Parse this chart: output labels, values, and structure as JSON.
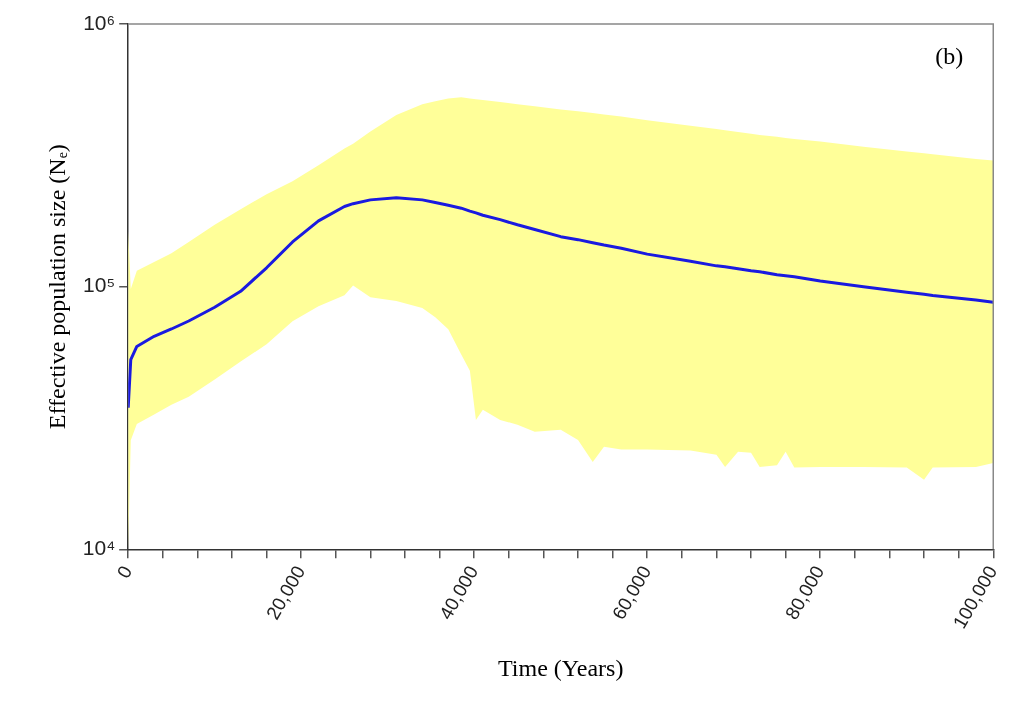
{
  "chart_data": {
    "type": "line",
    "xlabel": "Time (Years)",
    "ylabel": "Effective population size (Nₑ)",
    "annotations": [
      "(b)"
    ],
    "log": "y",
    "grid": false,
    "legend": false,
    "marker": "none",
    "line_style": "solid",
    "xlim": [
      0,
      100000
    ],
    "ylim": [
      10000,
      1000000
    ],
    "xticks": [
      0,
      {
        "value": 4000,
        "label": null
      },
      {
        "value": 8000,
        "label": null
      },
      {
        "value": 12000,
        "label": null
      },
      {
        "value": 16000,
        "label": null
      },
      {
        "value": 20000,
        "label": "20,000"
      },
      {
        "value": 24000,
        "label": null
      },
      {
        "value": 28000,
        "label": null
      },
      {
        "value": 32000,
        "label": null
      },
      {
        "value": 36000,
        "label": null
      },
      {
        "value": 40000,
        "label": "40,000"
      },
      {
        "value": 44000,
        "label": null
      },
      {
        "value": 48000,
        "label": null
      },
      {
        "value": 52000,
        "label": null
      },
      {
        "value": 56000,
        "label": null
      },
      {
        "value": 60000,
        "label": "60,000"
      },
      {
        "value": 64000,
        "label": null
      },
      {
        "value": 68000,
        "label": null
      },
      {
        "value": 72000,
        "label": null
      },
      {
        "value": 76000,
        "label": null
      },
      {
        "value": 80000,
        "label": "80,000"
      },
      {
        "value": 84000,
        "label": null
      },
      {
        "value": 88000,
        "label": null
      },
      {
        "value": 92000,
        "label": null
      },
      {
        "value": 96000,
        "label": null
      },
      {
        "value": 100000,
        "label": "100,000"
      }
    ],
    "yticks": [
      {
        "value": 10000,
        "label": "10⁴"
      },
      {
        "value": 100000,
        "label": "10⁵"
      },
      {
        "value": 1000000,
        "label": "10⁶"
      }
    ],
    "x": [
      0,
      300,
      1000,
      3000,
      5000,
      7000,
      10000,
      13000,
      16000,
      19000,
      22000,
      25000,
      26000,
      28000,
      31000,
      34000,
      35500,
      37000,
      38500,
      39500,
      40200,
      41000,
      43000,
      45000,
      47000,
      50000,
      52000,
      53700,
      55000,
      57000,
      60000,
      65000,
      68000,
      69000,
      70500,
      72000,
      73000,
      75000,
      76000,
      77000,
      80000,
      85000,
      90000,
      92000,
      93000,
      98000,
      100000
    ],
    "series": [
      {
        "color": "#1a1ae0",
        "values": [
          34600,
          52800,
          59200,
          64700,
          69000,
          74000,
          83500,
          96000,
          118000,
          148000,
          178000,
          202000,
          207000,
          214000,
          218000,
          214000,
          209000,
          204000,
          199000,
          194000,
          191000,
          187000,
          180000,
          172000,
          165000,
          155000,
          151000,
          147000,
          144000,
          140000,
          133000,
          125000,
          120000,
          119000,
          117000,
          115000,
          114000,
          111000,
          110000,
          109000,
          105000,
          100000,
          95300,
          93500,
          92500,
          89000,
          87300
        ],
        "lower": [
          10000,
          26000,
          30000,
          32600,
          35500,
          38100,
          44300,
          51900,
          60300,
          73800,
          84200,
          92700,
          101000,
          91200,
          88100,
          83000,
          76400,
          68800,
          55200,
          47800,
          31100,
          34000,
          31100,
          29800,
          28000,
          28500,
          26100,
          21500,
          24600,
          24000,
          24000,
          23800,
          22900,
          20600,
          23500,
          23300,
          20600,
          20900,
          23500,
          20500,
          20600,
          20600,
          20500,
          18400,
          20500,
          20600,
          21300
        ],
        "upper": [
          163000,
          98000,
          115000,
          124000,
          134000,
          148000,
          172000,
          197000,
          225000,
          252000,
          290000,
          336000,
          350000,
          390000,
          450000,
          495000,
          508000,
          520000,
          526000,
          520000,
          517000,
          514000,
          505000,
          495000,
          486000,
          473000,
          465000,
          458000,
          452000,
          444000,
          430000,
          410000,
          398000,
          394000,
          388000,
          382000,
          378000,
          372000,
          368000,
          365000,
          357000,
          341000,
          327000,
          322000,
          319000,
          306000,
          302000
        ]
      }
    ]
  }
}
